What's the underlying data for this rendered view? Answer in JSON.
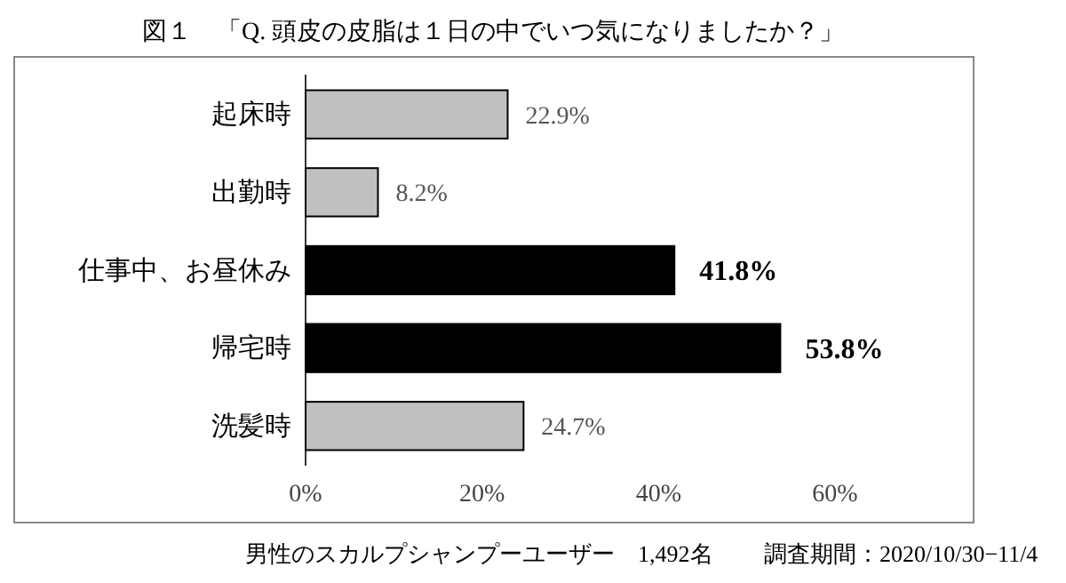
{
  "chart_data": {
    "type": "bar",
    "orientation": "horizontal",
    "title": "図１　「Q. 頭皮の皮脂は１日の中でいつ気になりましたか？」",
    "categories": [
      "起床時",
      "出勤時",
      "仕事中、お昼休み",
      "帰宅時",
      "洗髪時"
    ],
    "values": [
      22.9,
      8.2,
      41.8,
      53.8,
      24.7
    ],
    "colors": [
      "#c0c0c0",
      "#c0c0c0",
      "#000000",
      "#000000",
      "#c0c0c0"
    ],
    "value_labels": [
      "22.9%",
      "8.2%",
      "41.8%",
      "53.8%",
      "24.7%"
    ],
    "xlim": [
      0,
      60
    ],
    "xticks": [
      {
        "value": 0,
        "label": "0%"
      },
      {
        "value": 20,
        "label": "20%"
      },
      {
        "value": 40,
        "label": "40%"
      },
      {
        "value": 60,
        "label": "60%"
      }
    ],
    "grid": false,
    "annotations": [
      "男性のスカルプシャンプーユーザー　1,492名",
      "調査期間：2020/10/30−11/4"
    ]
  }
}
